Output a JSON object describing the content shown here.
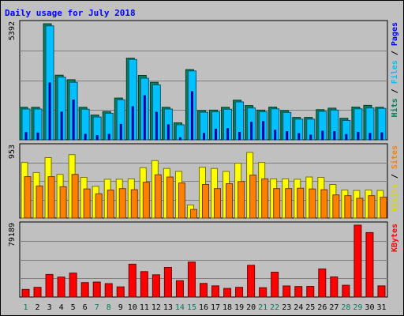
{
  "chart_data": {
    "type": "bar",
    "title": "Daily usage for July 2018",
    "categories": [
      "1",
      "2",
      "3",
      "4",
      "5",
      "6",
      "7",
      "8",
      "9",
      "10",
      "11",
      "12",
      "13",
      "14",
      "15",
      "16",
      "17",
      "18",
      "19",
      "20",
      "21",
      "22",
      "23",
      "24",
      "25",
      "26",
      "27",
      "28",
      "29",
      "30",
      "31"
    ],
    "weekend_days": [
      "1",
      "7",
      "8",
      "14",
      "15",
      "21",
      "22",
      "28",
      "29"
    ],
    "panels": [
      {
        "id": "hits-files-pages",
        "max_label": "5392",
        "ymax": 5392,
        "legend": [
          "Pages",
          "Files",
          "Hits"
        ],
        "series": [
          {
            "name": "Hits",
            "color": "#00805c",
            "values": [
              1510,
              1510,
              5390,
              3000,
              2790,
              1510,
              1150,
              1310,
              1940,
              3790,
              2990,
              2670,
              1510,
              790,
              3260,
              1360,
              1380,
              1510,
              1840,
              1590,
              1380,
              1520,
              1360,
              1040,
              1040,
              1400,
              1470,
              1000,
              1520,
              1600,
              1510
            ]
          },
          {
            "name": "Files",
            "color": "#00c0ff",
            "values": [
              1430,
              1430,
              5290,
              2910,
              2670,
              1420,
              1060,
              1230,
              1860,
              3730,
              2860,
              2550,
              1430,
              700,
              3200,
              1280,
              1300,
              1420,
              1760,
              1480,
              1300,
              1440,
              1270,
              960,
              960,
              1320,
              1380,
              900,
              1440,
              1480,
              1460
            ]
          },
          {
            "name": "Pages",
            "color": "#0000ff",
            "values": [
              340,
              320,
              2640,
              1290,
              1850,
              260,
              200,
              260,
              720,
              1540,
              2050,
              1280,
              700,
              100,
              2240,
              300,
              500,
              520,
              350,
              820,
              850,
              450,
              380,
              290,
              220,
              400,
              380,
              250,
              350,
              300,
              330
            ]
          }
        ]
      },
      {
        "id": "visits-sites",
        "max_label": "953",
        "ymax": 953,
        "legend": [
          "Sites",
          "Visits"
        ],
        "series": [
          {
            "name": "Visits",
            "color": "#ffff00",
            "values": [
              745,
              610,
              810,
              585,
              850,
              545,
              425,
              520,
              520,
              525,
              675,
              770,
              665,
              625,
              175,
              680,
              665,
              625,
              735,
              880,
              745,
              525,
              525,
              520,
              550,
              545,
              450,
              375,
              370,
              375,
              370
            ]
          },
          {
            "name": "Sites",
            "color": "#ff8000",
            "values": [
              555,
              430,
              555,
              420,
              585,
              390,
              325,
              375,
              395,
              380,
              480,
              580,
              550,
              470,
              115,
              450,
              395,
              460,
              490,
              575,
              525,
              395,
              395,
              400,
              390,
              380,
              310,
              300,
              265,
              300,
              280
            ]
          }
        ]
      },
      {
        "id": "kbytes",
        "max_label": "79189",
        "ymax": 79189,
        "legend": [
          "KBytes"
        ],
        "series": [
          {
            "name": "KBytes",
            "color": "#ff0000",
            "values": [
              8400,
              10700,
              24900,
              22000,
              26400,
              15900,
              16500,
              14800,
              11200,
              36200,
              28000,
              24500,
              32600,
              18000,
              38500,
              15000,
              12300,
              9500,
              10700,
              35000,
              10300,
              27400,
              12200,
              11600,
              11700,
              31000,
              22200,
              13000,
              79189,
              71000,
              12300
            ]
          }
        ]
      }
    ]
  }
}
